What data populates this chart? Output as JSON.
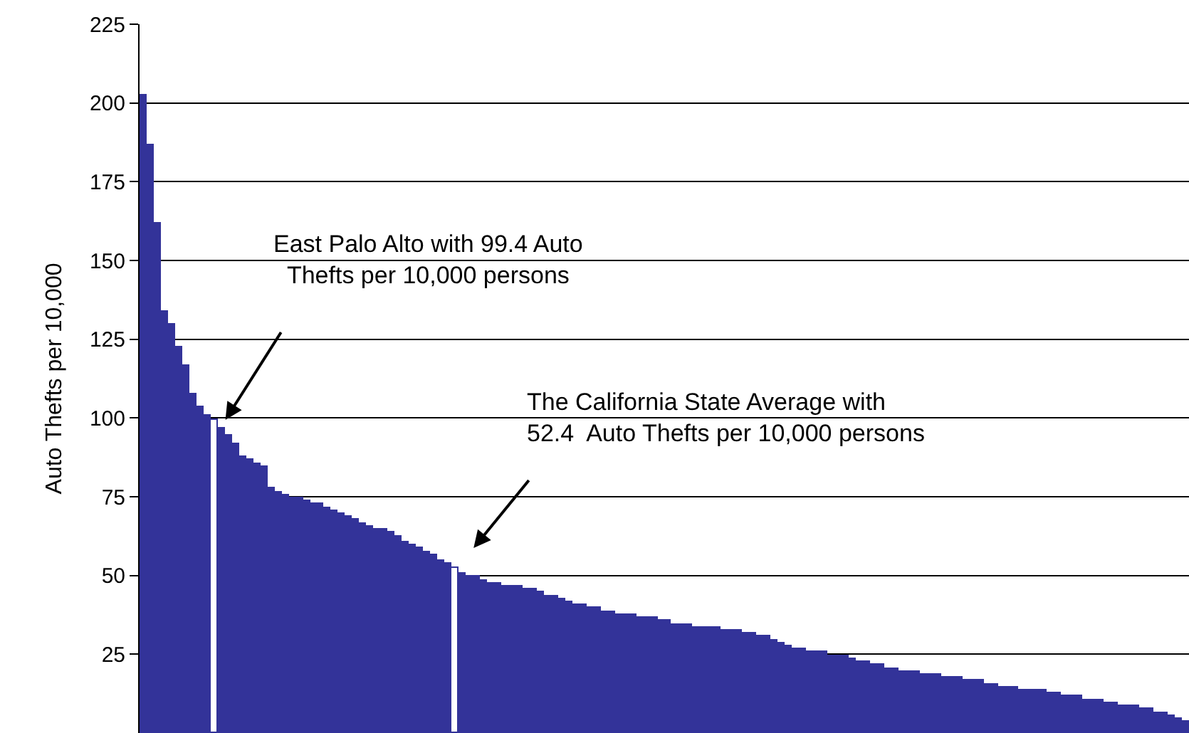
{
  "chart_data": {
    "type": "bar",
    "ylabel": "Auto Thefts per 10,000",
    "categories": [
      null,
      null,
      null,
      null,
      null,
      null,
      null,
      null,
      null,
      null,
      null,
      null,
      null,
      null,
      null,
      null,
      null,
      null,
      null,
      null,
      null,
      null,
      null,
      null,
      null,
      null,
      null,
      null,
      null,
      null,
      null,
      null,
      null,
      null,
      null,
      null,
      null,
      null,
      null,
      null,
      null,
      null,
      null,
      null,
      null,
      null,
      null,
      null,
      null,
      null,
      null,
      null,
      null,
      null,
      null,
      null,
      null,
      null,
      null,
      null,
      null,
      null,
      null,
      null,
      null,
      null,
      null,
      null,
      null,
      null,
      null,
      null,
      null,
      null,
      null,
      null,
      null,
      null,
      null,
      null,
      null,
      null,
      null,
      null,
      null,
      null,
      null,
      null,
      null,
      null,
      null,
      null,
      null,
      null,
      null,
      null,
      null,
      null,
      null,
      null,
      null,
      null,
      null,
      null,
      null,
      null,
      null,
      null,
      null,
      null,
      null,
      null,
      null,
      null,
      null,
      null,
      null,
      null,
      null,
      null,
      null,
      null,
      null,
      null,
      null,
      null,
      null,
      null,
      null,
      null,
      null,
      null,
      null,
      null,
      null,
      null,
      null,
      null,
      null,
      null,
      null,
      null,
      null,
      null,
      null,
      null,
      null,
      null
    ],
    "values": [
      203,
      187,
      162,
      134,
      130,
      123,
      117,
      108,
      104,
      101,
      99.4,
      97,
      95,
      92,
      88,
      87,
      86,
      85,
      78,
      77,
      76,
      75,
      75,
      74,
      73,
      73,
      72,
      71,
      70,
      69,
      68,
      67,
      66,
      65,
      65,
      64,
      63,
      61,
      60,
      59,
      58,
      57,
      55,
      54,
      52.4,
      51,
      50,
      50,
      49,
      48,
      48,
      47,
      47,
      47,
      46,
      46,
      45,
      44,
      44,
      43,
      42,
      41,
      41,
      40,
      40,
      39,
      39,
      38,
      38,
      38,
      37,
      37,
      37,
      36,
      36,
      35,
      35,
      35,
      34,
      34,
      34,
      34,
      33,
      33,
      33,
      32,
      32,
      31,
      31,
      30,
      29,
      28,
      27,
      27,
      26,
      26,
      26,
      25,
      25,
      25,
      24,
      23,
      23,
      22,
      22,
      21,
      21,
      20,
      20,
      20,
      19,
      19,
      19,
      18,
      18,
      18,
      17,
      17,
      17,
      16,
      16,
      15,
      15,
      15,
      14,
      14,
      14,
      14,
      13,
      13,
      12,
      12,
      12,
      11,
      11,
      11,
      10,
      10,
      9,
      9,
      9,
      8,
      8,
      7,
      7,
      6,
      5,
      4
    ],
    "colors": [
      "#333399",
      "#333399",
      "#333399",
      "#333399",
      "#333399",
      "#333399",
      "#333399",
      "#333399",
      "#333399",
      "#333399",
      "#ffffff",
      "#333399",
      "#333399",
      "#333399",
      "#333399",
      "#333399",
      "#333399",
      "#333399",
      "#333399",
      "#333399",
      "#333399",
      "#333399",
      "#333399",
      "#333399",
      "#333399",
      "#333399",
      "#333399",
      "#333399",
      "#333399",
      "#333399",
      "#333399",
      "#333399",
      "#333399",
      "#333399",
      "#333399",
      "#333399",
      "#333399",
      "#333399",
      "#333399",
      "#333399",
      "#333399",
      "#333399",
      "#333399",
      "#333399",
      "#ffffff",
      "#333399",
      "#333399",
      "#333399",
      "#333399",
      "#333399",
      "#333399",
      "#333399",
      "#333399",
      "#333399",
      "#333399",
      "#333399",
      "#333399",
      "#333399",
      "#333399",
      "#333399",
      "#333399",
      "#333399",
      "#333399",
      "#333399",
      "#333399",
      "#333399",
      "#333399",
      "#333399",
      "#333399",
      "#333399",
      "#333399",
      "#333399",
      "#333399",
      "#333399",
      "#333399",
      "#333399",
      "#333399",
      "#333399",
      "#333399",
      "#333399",
      "#333399",
      "#333399",
      "#333399",
      "#333399",
      "#333399",
      "#333399",
      "#333399",
      "#333399",
      "#333399",
      "#333399",
      "#333399",
      "#333399",
      "#333399",
      "#333399",
      "#333399",
      "#333399",
      "#333399",
      "#333399",
      "#333399",
      "#333399",
      "#333399",
      "#333399",
      "#333399",
      "#333399",
      "#333399",
      "#333399",
      "#333399",
      "#333399",
      "#333399",
      "#333399",
      "#333399",
      "#333399",
      "#333399",
      "#333399",
      "#333399",
      "#333399",
      "#333399",
      "#333399",
      "#333399",
      "#333399",
      "#333399",
      "#333399",
      "#333399",
      "#333399",
      "#333399",
      "#333399",
      "#333399",
      "#333399",
      "#333399",
      "#333399",
      "#333399",
      "#333399",
      "#333399",
      "#333399",
      "#333399",
      "#333399",
      "#333399",
      "#333399",
      "#333399",
      "#333399",
      "#333399",
      "#333399",
      "#333399",
      "#333399",
      "#333399",
      "#333399",
      "#333399",
      "#333399"
    ],
    "annotations": [
      "East Palo Alto with 99.4 Auto\nThefts per 10,000 persons",
      "The California State Average with\n52.4  Auto Thefts per 10,000 persons"
    ],
    "ylim": [
      0,
      225
    ],
    "yticks": [
      25,
      50,
      75,
      100,
      125,
      150,
      175,
      200,
      225
    ],
    "grid": "y",
    "tick_labels": "y"
  }
}
